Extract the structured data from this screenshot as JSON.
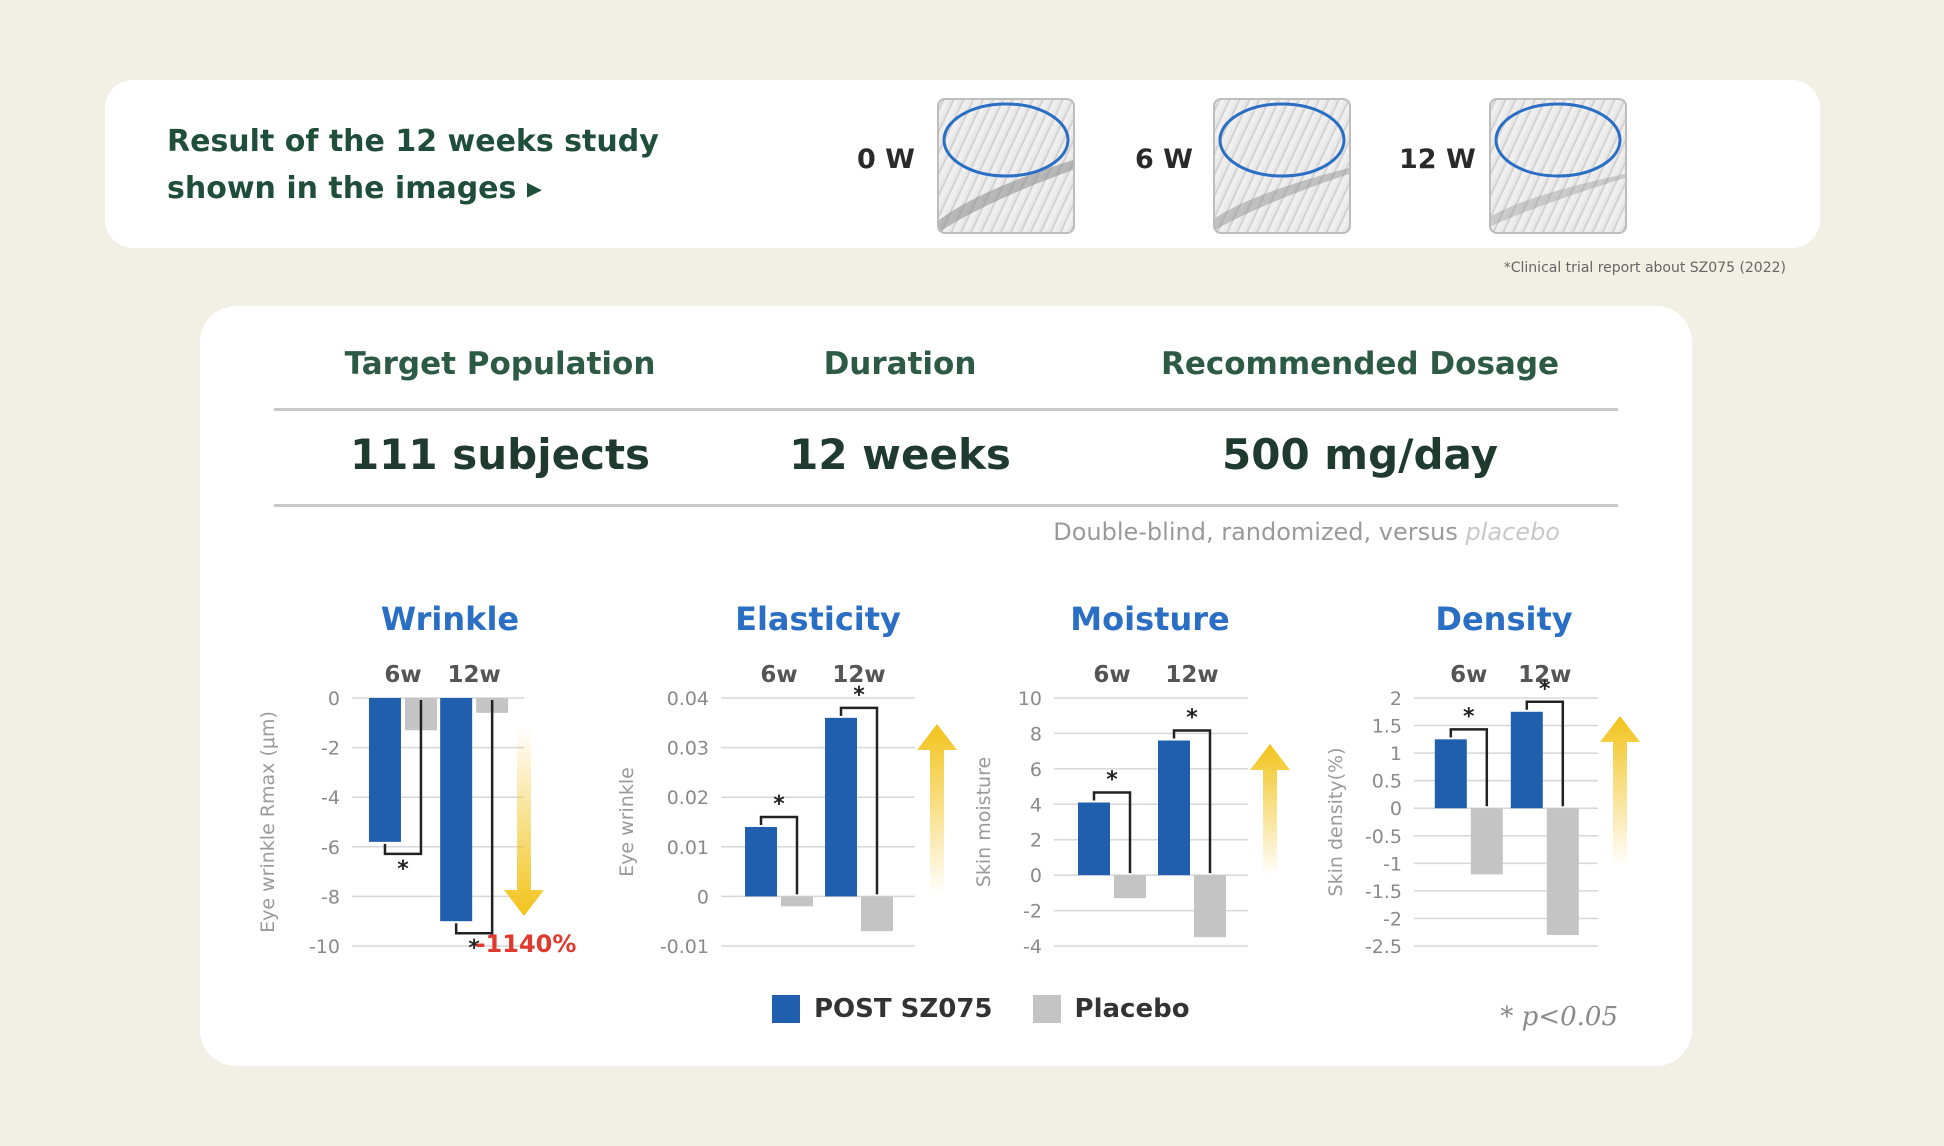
{
  "top": {
    "title_line1": "Result of the 12 weeks study",
    "title_line2": "shown in the images ▸",
    "weeks": [
      "0 W",
      "6 W",
      "12 W"
    ]
  },
  "footnote": "*Clinical trial report about SZ075 (2022)",
  "stats": {
    "headers": [
      "Target Population",
      "Duration",
      "Recommended Dosage"
    ],
    "values": [
      "111 subjects",
      "12 weeks",
      "500 mg/day"
    ],
    "design": "Double-blind, randomized, versus",
    "design_placebo": "placebo"
  },
  "colors": {
    "post": "#1f5fae",
    "placebo": "#c4c4c4",
    "title_blue": "#2a6fc4",
    "arrow": "#f2c31a",
    "red": "#e03a2e"
  },
  "legend": {
    "post": "POST SZ075",
    "placebo": "Placebo"
  },
  "pnote": "* p<0.05",
  "chart_data": [
    {
      "type": "bar",
      "title": "Wrinkle",
      "categories": [
        "6w",
        "12w"
      ],
      "ylabel": "Eye wrinkle R_max (μm)",
      "ylim": [
        -10,
        0
      ],
      "ticks": [
        0,
        -2,
        -4,
        -6,
        -8,
        -10
      ],
      "tick_labels": [
        "0",
        "-2",
        "-4",
        "-6",
        "-8",
        "-10"
      ],
      "series": [
        {
          "name": "POST SZ075",
          "values": [
            -5.8,
            -9.0
          ]
        },
        {
          "name": "Placebo",
          "values": [
            -1.3,
            -0.6
          ]
        }
      ],
      "significance": [
        "*",
        "*"
      ],
      "arrow": "down",
      "annotation": "-1140%"
    },
    {
      "type": "bar",
      "title": "Elasticity",
      "categories": [
        "6w",
        "12w"
      ],
      "ylabel": "Eye wrinkle",
      "ylim": [
        -0.01,
        0.04
      ],
      "ticks": [
        0.04,
        0.03,
        0.02,
        0.01,
        0,
        -0.01
      ],
      "tick_labels": [
        "0.04",
        "0.03",
        "0.02",
        "0.01",
        "0",
        "-0.01"
      ],
      "series": [
        {
          "name": "POST SZ075",
          "values": [
            0.014,
            0.036
          ]
        },
        {
          "name": "Placebo",
          "values": [
            -0.002,
            -0.007
          ]
        }
      ],
      "significance": [
        "*",
        "*"
      ],
      "arrow": "up"
    },
    {
      "type": "bar",
      "title": "Moisture",
      "categories": [
        "6w",
        "12w"
      ],
      "ylabel": "Skin moisture",
      "ylim": [
        -4,
        10
      ],
      "ticks": [
        10,
        8,
        6,
        4,
        2,
        0,
        -2,
        -4
      ],
      "tick_labels": [
        "10",
        "8",
        "6",
        "4",
        "2",
        "0",
        "-2",
        "-4"
      ],
      "series": [
        {
          "name": "POST SZ075",
          "values": [
            4.1,
            7.6
          ]
        },
        {
          "name": "Placebo",
          "values": [
            -1.3,
            -3.5
          ]
        }
      ],
      "significance": [
        "*",
        "*"
      ],
      "arrow": "up"
    },
    {
      "type": "bar",
      "title": "Density",
      "categories": [
        "6w",
        "12w"
      ],
      "ylabel": "Skin density(%)",
      "ylim": [
        -2.5,
        2
      ],
      "ticks": [
        2,
        1.5,
        1,
        0.5,
        0,
        -0.5,
        -1,
        -1.5,
        -2,
        -2.5
      ],
      "tick_labels": [
        "2",
        "1.5",
        "1",
        "0.5",
        "0",
        "-0.5",
        "-1",
        "-1.5",
        "-2",
        "-2.5"
      ],
      "series": [
        {
          "name": "POST SZ075",
          "values": [
            1.25,
            1.75
          ]
        },
        {
          "name": "Placebo",
          "values": [
            -1.2,
            -2.3
          ]
        }
      ],
      "significance": [
        "*",
        "*"
      ],
      "arrow": "up"
    }
  ]
}
